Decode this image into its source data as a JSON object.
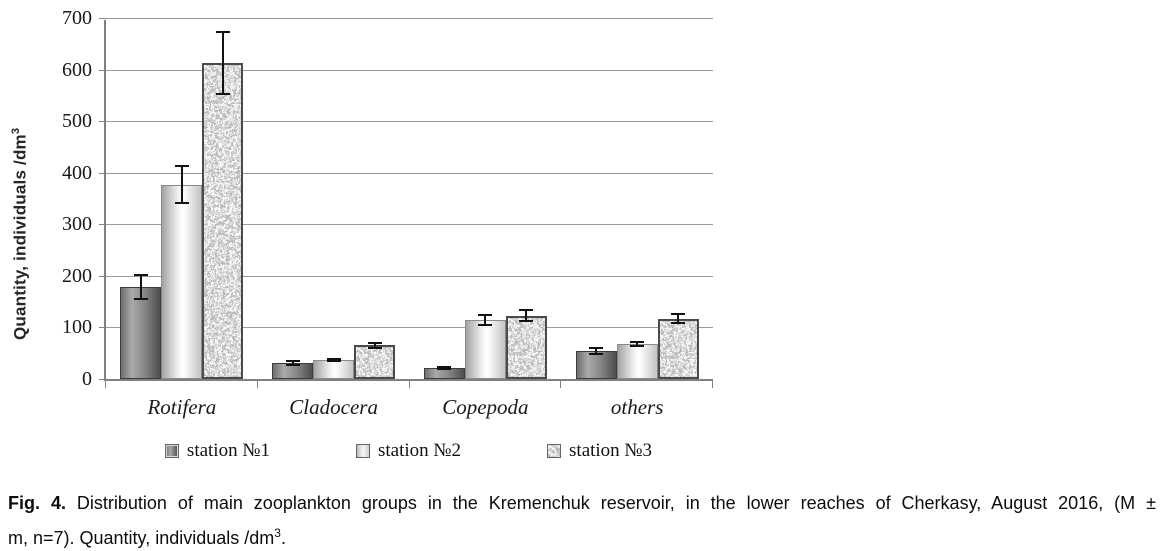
{
  "figure": {
    "caption_bold": "Fig. 4.",
    "caption_line1": " Distribution of main zooplankton groups in the Kremenchuk reservoir, in the lower reaches of Cherkasy, August 2016, (M ±",
    "caption_line2_pre": "m, n=7). Quantity, individuals /dm",
    "caption_sup": "3",
    "caption_end": "."
  },
  "chart_data": {
    "type": "bar",
    "title": "",
    "ylabel_main": "Quantity, individuals /dm",
    "ylabel_sup": "3",
    "xlabel": "",
    "ylim": [
      0,
      700
    ],
    "y_ticks": [
      0,
      100,
      200,
      300,
      400,
      500,
      600,
      700
    ],
    "grid": "horizontal",
    "legend_position": "bottom",
    "categories": [
      "Rotifera",
      "Cladocera",
      "Copepoda",
      "others"
    ],
    "series": [
      {
        "name": "station №1",
        "style": "s1",
        "values": [
          178,
          31,
          21,
          55
        ],
        "errors": [
          25,
          6,
          4,
          8
        ]
      },
      {
        "name": "station №2",
        "style": "s2",
        "values": [
          377,
          37,
          115,
          68
        ],
        "errors": [
          38,
          4,
          12,
          6
        ]
      },
      {
        "name": "station №3",
        "style": "s3",
        "values": [
          612,
          65,
          123,
          117
        ],
        "errors": [
          62,
          7,
          12,
          11
        ]
      }
    ],
    "error_bars": true
  },
  "colors": {
    "gridline": "#9a9a9a",
    "axis": "#808080",
    "error_bar": "#111111",
    "series1_dark": "#4e4e4e",
    "series2_light": "#f2f2f2",
    "series3_speckle_base": "#b3b3b3",
    "text": "#1a1a1a"
  }
}
